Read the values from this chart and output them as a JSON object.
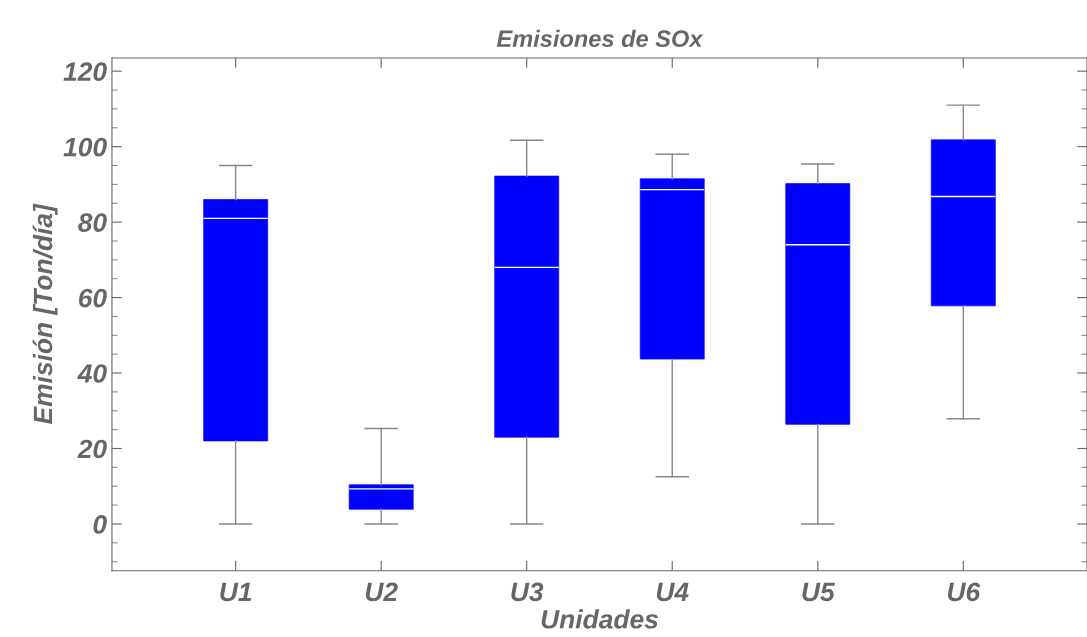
{
  "chart_data": {
    "type": "box",
    "title": "Emisiones de SOx",
    "xlabel": "Unidades",
    "ylabel": "Emisión [Ton/día]",
    "categories": [
      "U1",
      "U2",
      "U3",
      "U4",
      "U5",
      "U6"
    ],
    "boxes": [
      {
        "low": 0,
        "q1": 22,
        "median": 81,
        "q3": 86,
        "high": 95
      },
      {
        "low": 0,
        "q1": 3.9,
        "median": 9.3,
        "q3": 10.4,
        "high": 25.3
      },
      {
        "low": 0,
        "q1": 23,
        "median": 68,
        "q3": 92.2,
        "high": 101.7
      },
      {
        "low": 12.5,
        "q1": 43.7,
        "median": 88.6,
        "q3": 91.5,
        "high": 98
      },
      {
        "low": 0,
        "q1": 26.4,
        "median": 74,
        "q3": 90.2,
        "high": 95.4
      },
      {
        "low": 27.9,
        "q1": 57.8,
        "median": 86.8,
        "q3": 101.8,
        "high": 111
      }
    ],
    "color": "#0000ff",
    "ylim": [
      -12.4,
      123.5
    ],
    "yticks": [
      0,
      20,
      40,
      60,
      80,
      100,
      120
    ],
    "grid": false
  }
}
